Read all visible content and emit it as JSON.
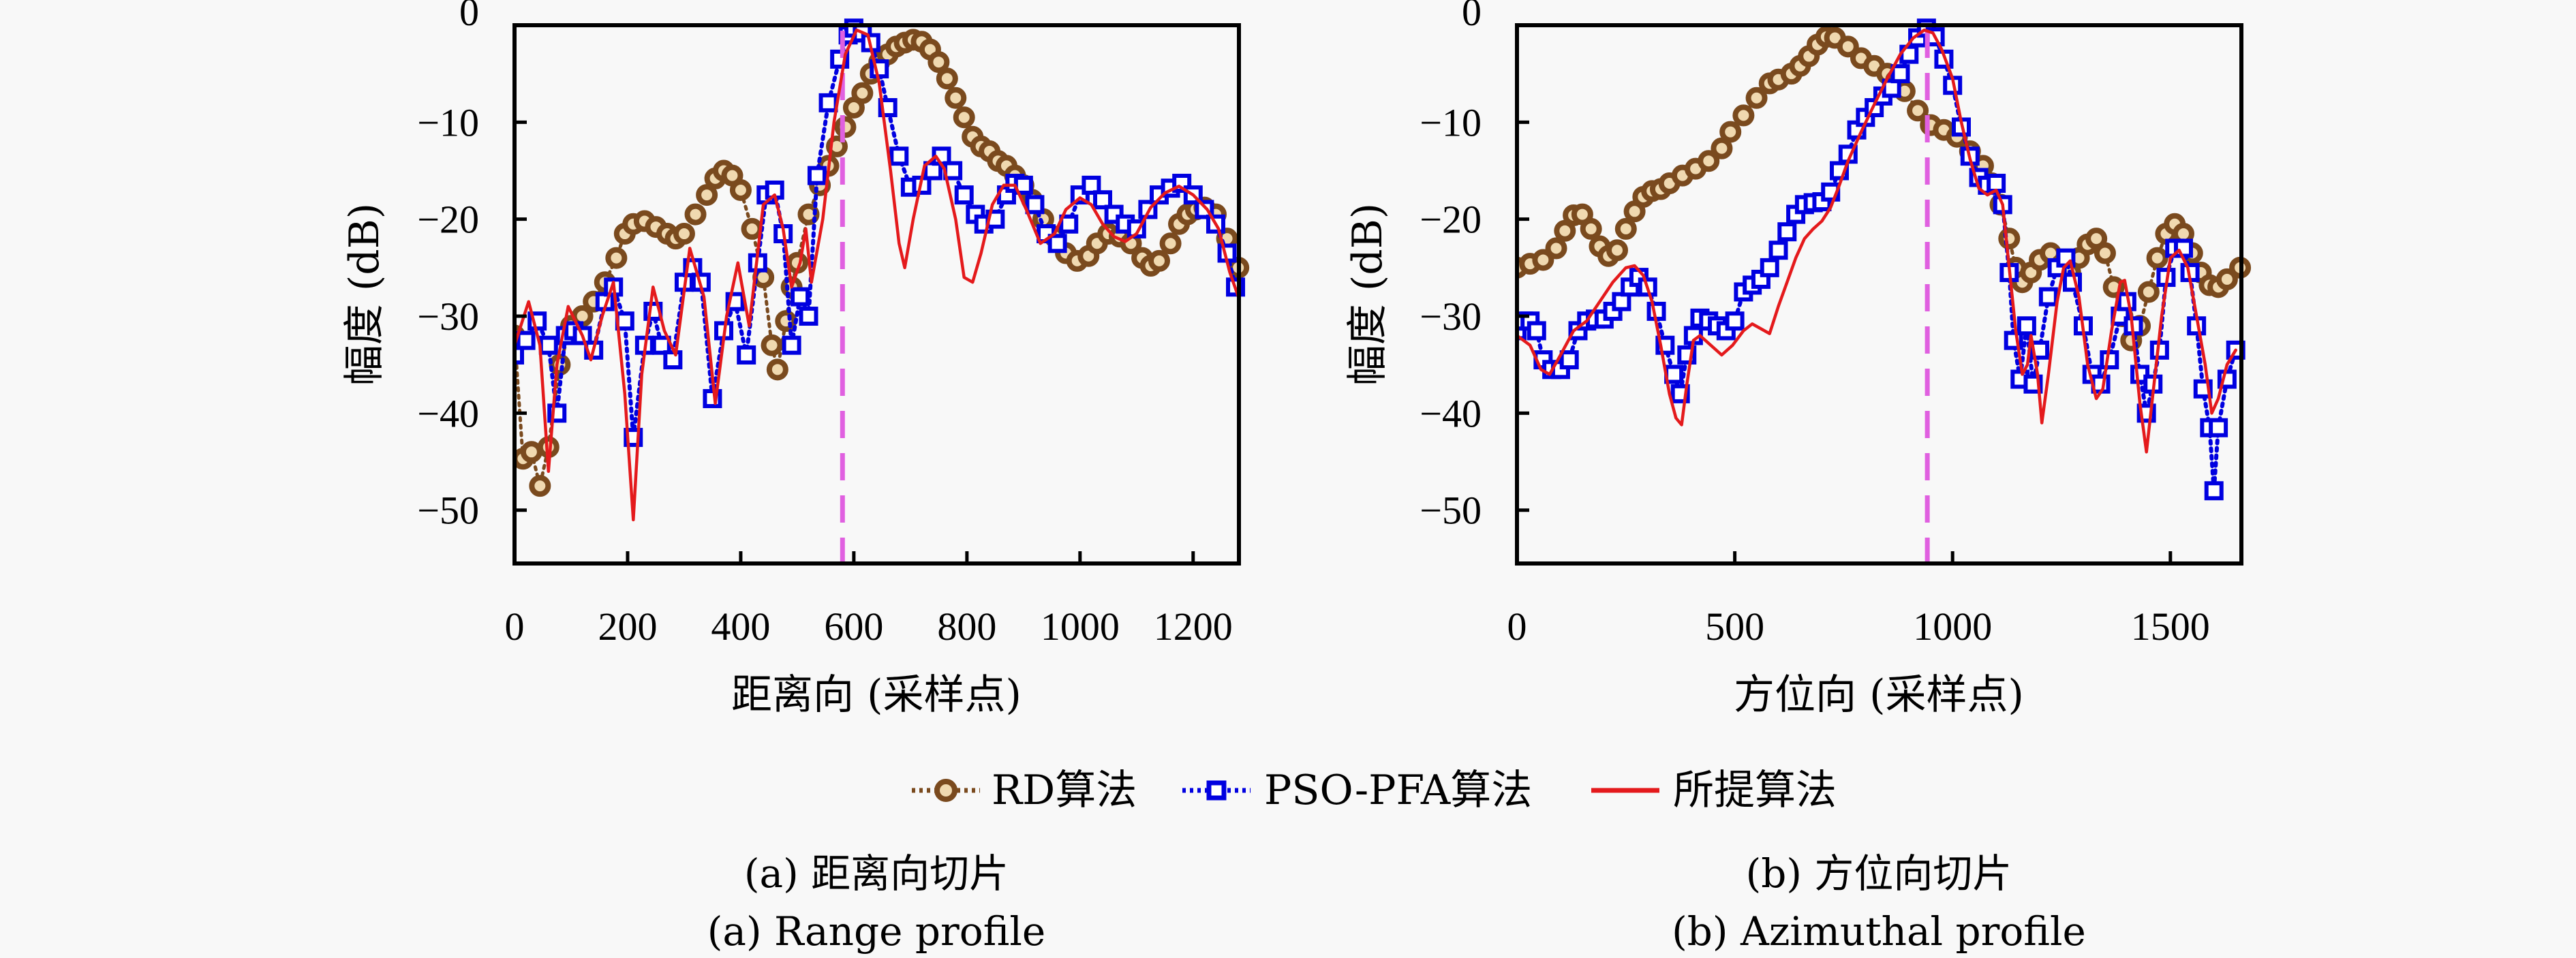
{
  "legend": {
    "placement": "bottom-center",
    "entries": [
      {
        "label": "RD算法",
        "color": "#7a4a1e",
        "line": "dotted",
        "marker": "circle"
      },
      {
        "label": "PSO-PFA算法",
        "color": "#0000e0",
        "line": "dotted",
        "marker": "square"
      },
      {
        "label": "所提算法",
        "color": "#e41a1c",
        "line": "solid",
        "marker": "none"
      }
    ]
  },
  "colors": {
    "rd": "#7a4a1e",
    "rd_fill": "#f0d9b0",
    "pso": "#0000e0",
    "proposed": "#e41a1c",
    "reference": "#e060e0"
  },
  "chart_data": [
    {
      "type": "line",
      "panel": "a",
      "caption_cn": "(a) 距离向切片",
      "caption_en": "(a) Range profile",
      "xlabel": "距离向 (采样点)",
      "ylabel": "幅度 (dB)",
      "xlim": [
        0,
        1281
      ],
      "ylim": [
        -55.5,
        0
      ],
      "xticks": [
        0,
        200,
        400,
        600,
        800,
        1000,
        1200
      ],
      "yticks": [
        0,
        -10,
        -20,
        -30,
        -40,
        -50
      ],
      "ytick_labels": [
        "0",
        "−10",
        "−20",
        "−30",
        "−40",
        "−50"
      ],
      "grid": false,
      "reference_line_x": 580,
      "series": [
        {
          "name": "RD算法",
          "x": [
            0,
            15,
            30,
            45,
            60,
            80,
            100,
            120,
            140,
            160,
            180,
            195,
            210,
            230,
            250,
            270,
            285,
            300,
            320,
            340,
            355,
            370,
            385,
            400,
            420,
            440,
            455,
            465,
            480,
            490,
            500,
            520,
            540,
            555,
            570,
            585,
            600,
            615,
            630,
            645,
            660,
            675,
            690,
            705,
            720,
            735,
            750,
            765,
            780,
            795,
            810,
            825,
            840,
            855,
            870,
            885,
            900,
            915,
            935,
            955,
            975,
            995,
            1015,
            1030,
            1050,
            1070,
            1090,
            1110,
            1125,
            1140,
            1160,
            1175,
            1190,
            1205,
            1220,
            1240,
            1260,
            1280
          ],
          "y": [
            -32,
            -44.7,
            -44,
            -47.5,
            -43.5,
            -35,
            -31,
            -30,
            -28.5,
            -26.5,
            -24,
            -21.5,
            -20.5,
            -20.2,
            -20.8,
            -21.5,
            -22,
            -21.5,
            -19.5,
            -17.5,
            -15.8,
            -15,
            -15.5,
            -17,
            -21,
            -26,
            -33,
            -35.5,
            -30.5,
            -27,
            -24.5,
            -19.5,
            -16.5,
            -14.5,
            -12.5,
            -10.5,
            -8.5,
            -7,
            -5,
            -3.8,
            -3,
            -2.2,
            -1.8,
            -1.5,
            -1.7,
            -2.5,
            -3.8,
            -5.5,
            -7.5,
            -9.5,
            -11.5,
            -12.5,
            -13,
            -14,
            -14.5,
            -15.5,
            -16.5,
            -18,
            -20,
            -21.8,
            -23.5,
            -24.3,
            -23.8,
            -22.5,
            -21.5,
            -21.8,
            -22.5,
            -24,
            -24.8,
            -24.3,
            -22.5,
            -20.5,
            -19.5,
            -19,
            -18.8,
            -19.5,
            -22,
            -25
          ]
        },
        {
          "name": "PSO-PFA算法",
          "x": [
            0,
            20,
            40,
            60,
            75,
            90,
            105,
            120,
            140,
            160,
            175,
            195,
            210,
            230,
            245,
            260,
            280,
            300,
            315,
            330,
            350,
            370,
            390,
            410,
            430,
            445,
            460,
            475,
            490,
            505,
            520,
            535,
            555,
            575,
            590,
            600,
            615,
            630,
            645,
            660,
            680,
            700,
            720,
            740,
            755,
            775,
            795,
            815,
            830,
            850,
            870,
            885,
            900,
            920,
            940,
            960,
            980,
            1000,
            1020,
            1040,
            1060,
            1080,
            1100,
            1120,
            1140,
            1160,
            1180,
            1200,
            1220,
            1240,
            1260,
            1275
          ],
          "y": [
            -34,
            -32.5,
            -30.5,
            -33,
            -40,
            -32,
            -31.5,
            -32,
            -33.5,
            -28.5,
            -27,
            -30.5,
            -42.5,
            -33,
            -29.5,
            -33,
            -34.5,
            -26.5,
            -25,
            -26.5,
            -38.5,
            -31.5,
            -28.5,
            -34,
            -24.5,
            -17.5,
            -17,
            -21.5,
            -33,
            -28,
            -30,
            -15.5,
            -8,
            -3.5,
            -1,
            -0.3,
            -0.8,
            -1.8,
            -4.5,
            -8.5,
            -13.5,
            -16.7,
            -16.5,
            -15,
            -13.5,
            -15,
            -17.5,
            -19.5,
            -20.5,
            -20,
            -17.5,
            -16.3,
            -16.5,
            -18.5,
            -21.5,
            -22.5,
            -20.5,
            -17.5,
            -16.5,
            -18,
            -19.5,
            -20.5,
            -21,
            -19,
            -17.5,
            -16.8,
            -16.3,
            -17.5,
            -19,
            -20.5,
            -23.5,
            -27
          ]
        },
        {
          "name": "所提算法",
          "x": [
            0,
            25,
            45,
            60,
            75,
            95,
            120,
            135,
            155,
            175,
            195,
            210,
            225,
            245,
            265,
            285,
            310,
            335,
            355,
            375,
            395,
            415,
            440,
            460,
            475,
            490,
            505,
            515,
            525,
            545,
            565,
            585,
            605,
            625,
            645,
            665,
            680,
            690,
            705,
            725,
            745,
            760,
            780,
            795,
            810,
            825,
            845,
            865,
            885,
            905,
            930,
            955,
            975,
            1000,
            1020,
            1040,
            1060,
            1080,
            1100,
            1125,
            1150,
            1175,
            1200,
            1225,
            1245,
            1265,
            1280
          ],
          "y": [
            -33,
            -28.5,
            -33,
            -46,
            -35,
            -29,
            -32,
            -34.5,
            -30,
            -26.5,
            -38,
            -51,
            -36,
            -27,
            -31.5,
            -34,
            -23,
            -28,
            -39,
            -30,
            -24.5,
            -31,
            -18.5,
            -17.5,
            -21,
            -27,
            -24.5,
            -21,
            -26.5,
            -20,
            -10,
            -3,
            -0.5,
            -1,
            -6,
            -15,
            -22.5,
            -25,
            -20,
            -14.5,
            -13.5,
            -14.8,
            -20,
            -26,
            -26.5,
            -23.5,
            -18.5,
            -16.5,
            -16.5,
            -19,
            -22.5,
            -21.5,
            -19,
            -17.8,
            -18.5,
            -20.5,
            -21.8,
            -22.3,
            -21.5,
            -18.8,
            -17.3,
            -16.6,
            -17.5,
            -19,
            -21,
            -25.5,
            -28
          ]
        }
      ]
    },
    {
      "type": "line",
      "panel": "b",
      "caption_cn": "(b) 方位向切片",
      "caption_en": "(b) Azimuthal profile",
      "xlabel": "方位向 (采样点)",
      "ylabel": "幅度 (dB)",
      "xlim": [
        0,
        1663
      ],
      "ylim": [
        -55.5,
        0
      ],
      "xticks": [
        0,
        500,
        1000,
        1500
      ],
      "yticks": [
        0,
        -10,
        -20,
        -30,
        -40,
        -50
      ],
      "ytick_labels": [
        "0",
        "−10",
        "−20",
        "−30",
        "−40",
        "−50"
      ],
      "grid": false,
      "reference_line_x": 942,
      "series": [
        {
          "name": "RD算法",
          "x": [
            0,
            30,
            60,
            90,
            110,
            130,
            150,
            170,
            190,
            210,
            230,
            250,
            270,
            290,
            310,
            330,
            350,
            380,
            410,
            440,
            470,
            490,
            520,
            550,
            580,
            600,
            630,
            650,
            670,
            690,
            710,
            730,
            760,
            790,
            820,
            850,
            870,
            890,
            920,
            950,
            980,
            1010,
            1040,
            1070,
            1090,
            1110,
            1130,
            1145,
            1160,
            1180,
            1200,
            1225,
            1250,
            1270,
            1290,
            1310,
            1330,
            1350,
            1370,
            1390,
            1410,
            1430,
            1450,
            1470,
            1490,
            1510,
            1530,
            1550,
            1570,
            1590,
            1610,
            1630,
            1660
          ],
          "y": [
            -25,
            -24.6,
            -24.2,
            -23,
            -21.2,
            -19.6,
            -19.5,
            -21,
            -22.8,
            -23.8,
            -23.2,
            -21,
            -19.2,
            -17.7,
            -17.1,
            -16.9,
            -16.3,
            -15.5,
            -14.8,
            -14,
            -12.7,
            -11,
            -9.3,
            -7.5,
            -6,
            -5.6,
            -5,
            -4.2,
            -3.2,
            -2,
            -1.2,
            -1.3,
            -2.2,
            -3.4,
            -4.2,
            -5,
            -5.7,
            -6.8,
            -8.8,
            -10.3,
            -10.8,
            -11.5,
            -13,
            -14.5,
            -16.3,
            -18.5,
            -22,
            -25,
            -26.5,
            -25.5,
            -24.2,
            -23.5,
            -24.7,
            -25.5,
            -24,
            -22.6,
            -22,
            -23.5,
            -27,
            -30,
            -32.5,
            -31,
            -27.5,
            -24,
            -21.5,
            -20.5,
            -21.5,
            -23.5,
            -25.5,
            -26.8,
            -27,
            -26.2,
            -25
          ]
        },
        {
          "name": "PSO-PFA算法",
          "x": [
            0,
            15,
            30,
            45,
            60,
            80,
            100,
            120,
            140,
            160,
            180,
            200,
            220,
            240,
            260,
            280,
            300,
            320,
            340,
            360,
            375,
            390,
            405,
            420,
            440,
            460,
            480,
            500,
            520,
            540,
            560,
            580,
            600,
            620,
            640,
            660,
            680,
            700,
            720,
            740,
            760,
            780,
            800,
            820,
            840,
            860,
            880,
            900,
            920,
            940,
            960,
            980,
            1000,
            1020,
            1040,
            1060,
            1080,
            1100,
            1115,
            1130,
            1140,
            1155,
            1170,
            1185,
            1200,
            1220,
            1240,
            1260,
            1275,
            1300,
            1320,
            1340,
            1360,
            1385,
            1400,
            1415,
            1430,
            1445,
            1460,
            1475,
            1490,
            1510,
            1530,
            1545,
            1560,
            1575,
            1590,
            1600,
            1610,
            1630,
            1650
          ],
          "y": [
            -31.5,
            -30.5,
            -30.5,
            -31.5,
            -34.5,
            -35.5,
            -35.5,
            -34.5,
            -31.5,
            -30.5,
            -30.3,
            -30.3,
            -29.5,
            -28.5,
            -27,
            -26,
            -27,
            -29.5,
            -33,
            -36,
            -38,
            -34,
            -32,
            -30.2,
            -30.5,
            -31,
            -31.5,
            -30.5,
            -27.5,
            -26.8,
            -26.2,
            -25,
            -23.2,
            -21.3,
            -19.5,
            -18.5,
            -18.3,
            -18.2,
            -17.2,
            -15,
            -13.3,
            -10.8,
            -9.5,
            -8.5,
            -7.3,
            -6.5,
            -5,
            -3,
            -1.3,
            -0.3,
            -1.2,
            -3.5,
            -6.2,
            -10.5,
            -13.5,
            -15.7,
            -16.5,
            -16.3,
            -18.5,
            -25.5,
            -32.5,
            -36.5,
            -31,
            -37,
            -33.5,
            -28,
            -25,
            -24,
            -26.5,
            -31,
            -36,
            -37,
            -34.5,
            -30,
            -28.5,
            -31,
            -36,
            -40,
            -37,
            -33.5,
            -26,
            -23,
            -23,
            -25.5,
            -31,
            -37.5,
            -41.5,
            -48,
            -41.5,
            -36.5,
            -33.5
          ]
        },
        {
          "name": "所提算法",
          "x": [
            0,
            30,
            55,
            75,
            100,
            130,
            160,
            190,
            220,
            250,
            270,
            290,
            310,
            330,
            350,
            365,
            378,
            390,
            405,
            420,
            445,
            470,
            495,
            520,
            540,
            560,
            580,
            600,
            620,
            640,
            660,
            680,
            700,
            720,
            740,
            760,
            790,
            820,
            850,
            880,
            910,
            935,
            955,
            975,
            1000,
            1020,
            1040,
            1060,
            1080,
            1100,
            1115,
            1130,
            1145,
            1160,
            1172,
            1180,
            1195,
            1205,
            1220,
            1240,
            1255,
            1270,
            1290,
            1310,
            1330,
            1345,
            1365,
            1385,
            1395,
            1410,
            1430,
            1445,
            1460,
            1480,
            1500,
            1520,
            1540,
            1560,
            1580,
            1595,
            1610,
            1630,
            1650
          ],
          "y": [
            -32,
            -33,
            -35.5,
            -36,
            -34,
            -31.5,
            -30.5,
            -28.5,
            -26.5,
            -25,
            -24.8,
            -25.8,
            -28.5,
            -33,
            -38,
            -40.5,
            -41.2,
            -37,
            -32.5,
            -32,
            -33,
            -34,
            -33,
            -31.5,
            -30.8,
            -31.3,
            -31.8,
            -29,
            -26.5,
            -24,
            -22,
            -21,
            -20.2,
            -18.8,
            -16.5,
            -14,
            -11,
            -8.2,
            -5.5,
            -3,
            -1.3,
            -0.5,
            -0.8,
            -2.5,
            -5.5,
            -10,
            -13.8,
            -16.8,
            -17.5,
            -17,
            -18.5,
            -25,
            -31.5,
            -36,
            -35,
            -32,
            -36,
            -41,
            -36,
            -28.5,
            -25,
            -24.3,
            -28,
            -35,
            -38.5,
            -37.5,
            -31.5,
            -26.5,
            -26.3,
            -30,
            -39,
            -44,
            -38,
            -30,
            -24,
            -23.2,
            -25,
            -30,
            -35,
            -40,
            -38.5,
            -35,
            -33.5
          ]
        }
      ]
    }
  ]
}
